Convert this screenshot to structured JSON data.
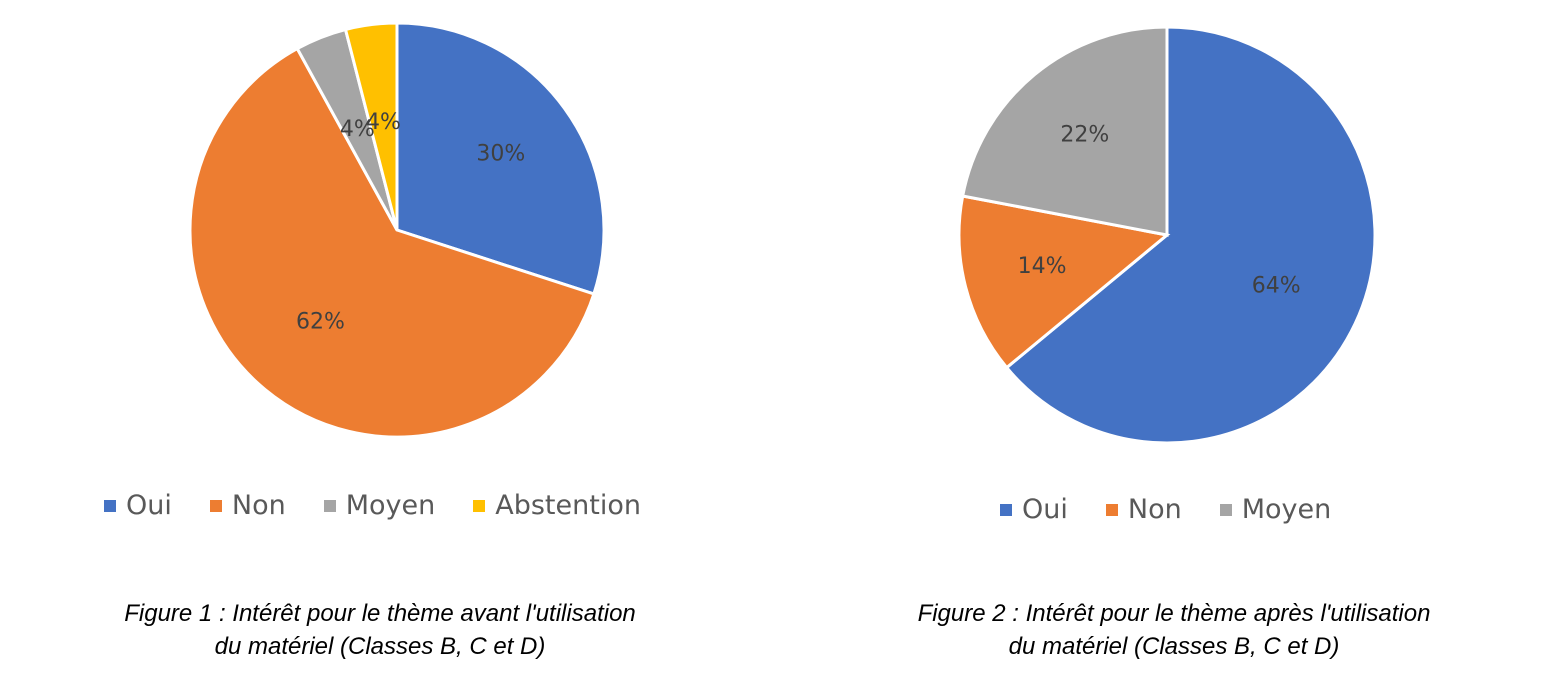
{
  "colors": {
    "oui": "#4472C4",
    "non": "#ED7D31",
    "moyen": "#A5A5A5",
    "abstention": "#FFC000"
  },
  "chart_data": [
    {
      "type": "pie",
      "start": "12 o'clock, clockwise",
      "slices": [
        {
          "label": "Oui",
          "value": 30,
          "display": "30%",
          "color": "#4472C4"
        },
        {
          "label": "Non",
          "value": 62,
          "display": "62%",
          "color": "#ED7D31"
        },
        {
          "label": "Moyen",
          "value": 4,
          "display": "4%",
          "color": "#A5A5A5"
        },
        {
          "label": "Abstention",
          "value": 4,
          "display": "4%",
          "color": "#FFC000"
        }
      ],
      "legend": [
        "Oui",
        "Non",
        "Moyen",
        "Abstention"
      ],
      "legend_position": "bottom",
      "caption_line1": "Figure 1 : Intérêt pour le thème avant l'utilisation",
      "caption_line2": "du matériel (Classes B, C et D)"
    },
    {
      "type": "pie",
      "start": "12 o'clock, clockwise",
      "slices": [
        {
          "label": "Oui",
          "value": 64,
          "display": "64%",
          "color": "#4472C4"
        },
        {
          "label": "Non",
          "value": 14,
          "display": "14%",
          "color": "#ED7D31"
        },
        {
          "label": "Moyen",
          "value": 22,
          "display": "22%",
          "color": "#A5A5A5"
        }
      ],
      "legend": [
        "Oui",
        "Non",
        "Moyen"
      ],
      "legend_position": "bottom",
      "caption_line1": "Figure 2 : Intérêt pour le thème après l'utilisation",
      "caption_line2": "du matériel (Classes B, C et D)"
    }
  ]
}
